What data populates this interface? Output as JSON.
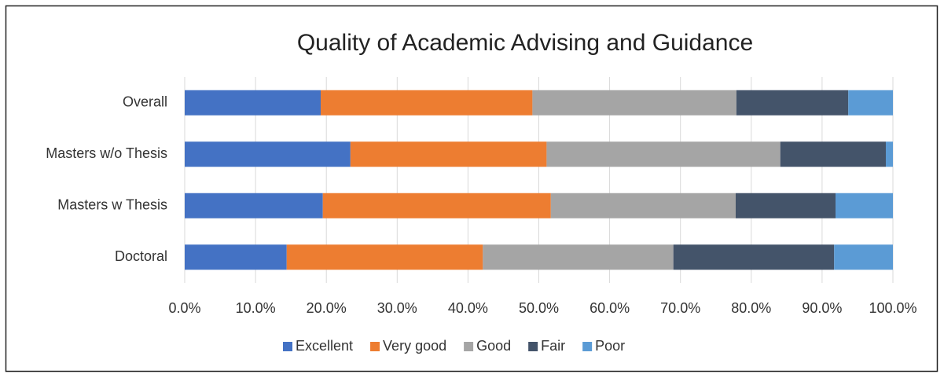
{
  "chart_data": {
    "type": "stacked_bar_horizontal",
    "title": "Quality of Academic Advising and Guidance",
    "categories": [
      "Overall",
      "Masters w/o Thesis",
      "Masters w Thesis",
      "Doctoral"
    ],
    "series": [
      {
        "name": "Excellent",
        "color": "#4472c4",
        "values": [
          19.2,
          23.4,
          19.5,
          14.4
        ]
      },
      {
        "name": "Very good",
        "color": "#ed7d31",
        "values": [
          29.9,
          27.7,
          32.2,
          27.7
        ]
      },
      {
        "name": "Good",
        "color": "#a5a5a5",
        "values": [
          28.8,
          33.0,
          26.1,
          26.9
        ]
      },
      {
        "name": "Fair",
        "color": "#44546a",
        "values": [
          15.8,
          14.9,
          14.1,
          22.7
        ]
      },
      {
        "name": "Poor",
        "color": "#5b9bd5",
        "values": [
          6.3,
          1.0,
          8.1,
          8.3
        ]
      }
    ],
    "xlim": [
      0,
      100
    ],
    "xticks": [
      {
        "value": 0,
        "label": "0.0%"
      },
      {
        "value": 10,
        "label": "10.0%"
      },
      {
        "value": 20,
        "label": "20.0%"
      },
      {
        "value": 30,
        "label": "30.0%"
      },
      {
        "value": 40,
        "label": "40.0%"
      },
      {
        "value": 50,
        "label": "50.0%"
      },
      {
        "value": 60,
        "label": "60.0%"
      },
      {
        "value": 70,
        "label": "70.0%"
      },
      {
        "value": 80,
        "label": "80.0%"
      },
      {
        "value": 90,
        "label": "90.0%"
      },
      {
        "value": 100,
        "label": "100.0%"
      }
    ],
    "grid": true,
    "legend": "bottom"
  }
}
